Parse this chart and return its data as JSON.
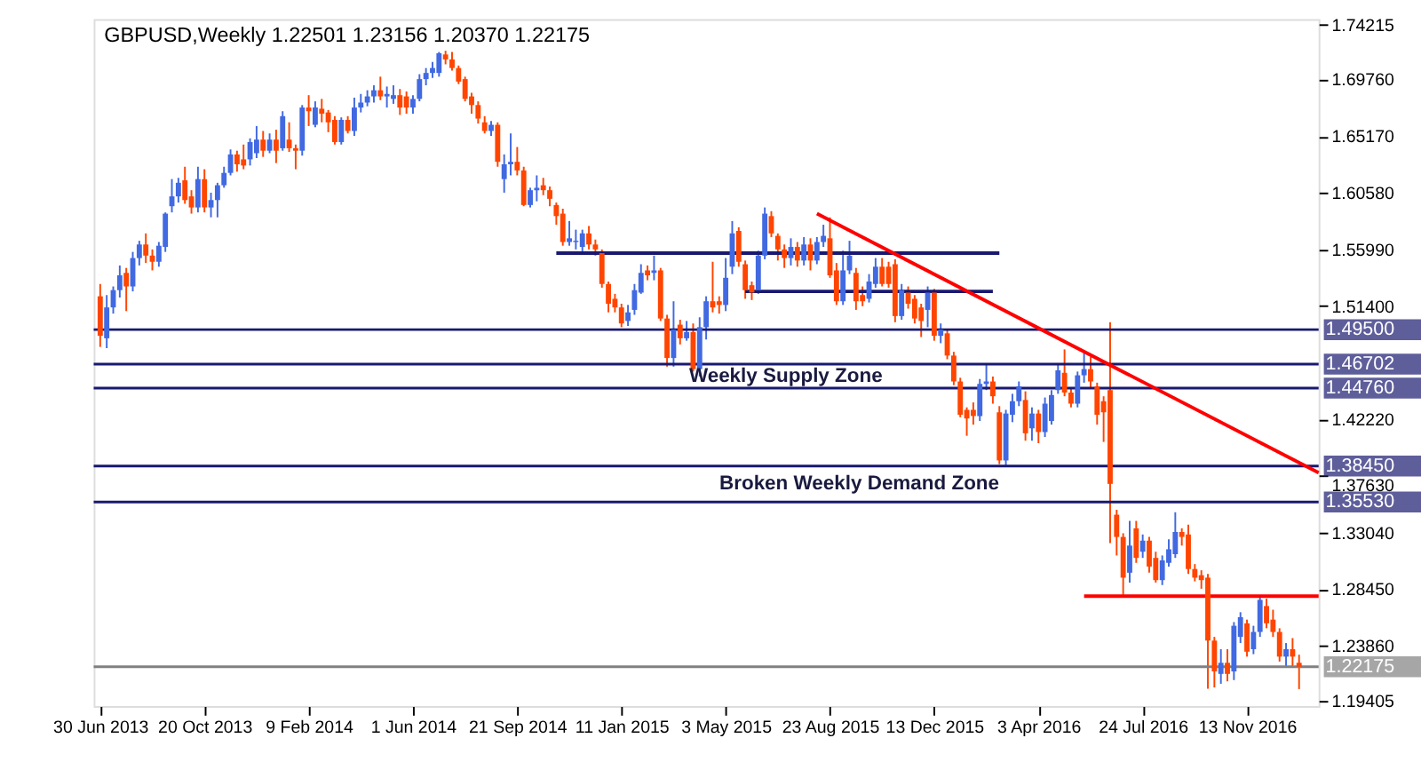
{
  "chart_data": {
    "type": "candlestick",
    "title": "GBPUSD,Weekly  1.22501 1.23156 1.20370 1.22175",
    "x": [
      "2013-06-30",
      "2013-07-07",
      "2013-07-14",
      "2013-07-21",
      "2013-07-28",
      "2013-08-04",
      "2013-08-11",
      "2013-08-18",
      "2013-08-25",
      "2013-09-01",
      "2013-09-08",
      "2013-09-15",
      "2013-09-22",
      "2013-09-29",
      "2013-10-06",
      "2013-10-13",
      "2013-10-20",
      "2013-10-27",
      "2013-11-03",
      "2013-11-10",
      "2013-11-17",
      "2013-11-24",
      "2013-12-01",
      "2013-12-08",
      "2013-12-15",
      "2013-12-22",
      "2013-12-29",
      "2014-01-05",
      "2014-01-12",
      "2014-01-19",
      "2014-01-26",
      "2014-02-02",
      "2014-02-09",
      "2014-02-16",
      "2014-02-23",
      "2014-03-02",
      "2014-03-09",
      "2014-03-16",
      "2014-03-23",
      "2014-03-30",
      "2014-04-06",
      "2014-04-13",
      "2014-04-20",
      "2014-04-27",
      "2014-05-04",
      "2014-05-11",
      "2014-05-18",
      "2014-05-25",
      "2014-06-01",
      "2014-06-08",
      "2014-06-15",
      "2014-06-22",
      "2014-06-29",
      "2014-07-06",
      "2014-07-13",
      "2014-07-20",
      "2014-07-27",
      "2014-08-03",
      "2014-08-10",
      "2014-08-17",
      "2014-08-24",
      "2014-08-31",
      "2014-09-07",
      "2014-09-14",
      "2014-09-21",
      "2014-09-28",
      "2014-10-05",
      "2014-10-12",
      "2014-10-19",
      "2014-10-26",
      "2014-11-02",
      "2014-11-09",
      "2014-11-16",
      "2014-11-23",
      "2014-11-30",
      "2014-12-07",
      "2014-12-14",
      "2014-12-21",
      "2014-12-28",
      "2015-01-04",
      "2015-01-11",
      "2015-01-18",
      "2015-01-25",
      "2015-02-01",
      "2015-02-08",
      "2015-02-15",
      "2015-02-22",
      "2015-03-01",
      "2015-03-08",
      "2015-03-15",
      "2015-03-22",
      "2015-03-29",
      "2015-04-05",
      "2015-04-12",
      "2015-04-19",
      "2015-04-26",
      "2015-05-03",
      "2015-05-10",
      "2015-05-17",
      "2015-05-24",
      "2015-05-31",
      "2015-06-07",
      "2015-06-14",
      "2015-06-21",
      "2015-06-28",
      "2015-07-05",
      "2015-07-12",
      "2015-07-19",
      "2015-07-26",
      "2015-08-02",
      "2015-08-09",
      "2015-08-16",
      "2015-08-23",
      "2015-08-30",
      "2015-09-06",
      "2015-09-13",
      "2015-09-20",
      "2015-09-27",
      "2015-10-04",
      "2015-10-11",
      "2015-10-18",
      "2015-10-25",
      "2015-11-01",
      "2015-11-08",
      "2015-11-15",
      "2015-11-22",
      "2015-11-29",
      "2015-12-06",
      "2015-12-13",
      "2015-12-20",
      "2015-12-27",
      "2016-01-03",
      "2016-01-10",
      "2016-01-17",
      "2016-01-24",
      "2016-01-31",
      "2016-02-07",
      "2016-02-14",
      "2016-02-21",
      "2016-02-28",
      "2016-03-06",
      "2016-03-13",
      "2016-03-20",
      "2016-03-27",
      "2016-04-03",
      "2016-04-10",
      "2016-04-17",
      "2016-04-24",
      "2016-05-01",
      "2016-05-08",
      "2016-05-15",
      "2016-05-22",
      "2016-05-29",
      "2016-06-05",
      "2016-06-12",
      "2016-06-19",
      "2016-06-26",
      "2016-07-03",
      "2016-07-10",
      "2016-07-17",
      "2016-07-24",
      "2016-07-31",
      "2016-08-07",
      "2016-08-14",
      "2016-08-21",
      "2016-08-28",
      "2016-09-04",
      "2016-09-11",
      "2016-09-18",
      "2016-09-25",
      "2016-10-02",
      "2016-10-09",
      "2016-10-16",
      "2016-10-23",
      "2016-10-30",
      "2016-11-06",
      "2016-11-13",
      "2016-11-20",
      "2016-11-27",
      "2016-12-04",
      "2016-12-11",
      "2016-12-18",
      "2016-12-25",
      "2017-01-01",
      "2017-01-08"
    ],
    "ohlc": [
      [
        1.522,
        1.532,
        1.481,
        1.49
      ],
      [
        1.488,
        1.523,
        1.48,
        1.513
      ],
      [
        1.513,
        1.53,
        1.508,
        1.527
      ],
      [
        1.527,
        1.547,
        1.521,
        1.539
      ],
      [
        1.541,
        1.545,
        1.51,
        1.53
      ],
      [
        1.53,
        1.558,
        1.526,
        1.553
      ],
      [
        1.553,
        1.567,
        1.547,
        1.564
      ],
      [
        1.564,
        1.573,
        1.549,
        1.555
      ],
      [
        1.555,
        1.56,
        1.543,
        1.55
      ],
      [
        1.55,
        1.566,
        1.546,
        1.563
      ],
      [
        1.562,
        1.59,
        1.558,
        1.589
      ],
      [
        1.595,
        1.617,
        1.59,
        1.603
      ],
      [
        1.603,
        1.618,
        1.598,
        1.614
      ],
      [
        1.616,
        1.627,
        1.597,
        1.6
      ],
      [
        1.603,
        1.608,
        1.589,
        1.594
      ],
      [
        1.594,
        1.627,
        1.59,
        1.617
      ],
      [
        1.617,
        1.625,
        1.59,
        1.594
      ],
      [
        1.594,
        1.606,
        1.586,
        1.6
      ],
      [
        1.6,
        1.614,
        1.586,
        1.612
      ],
      [
        1.612,
        1.627,
        1.61,
        1.622
      ],
      [
        1.622,
        1.641,
        1.62,
        1.637
      ],
      [
        1.637,
        1.64,
        1.623,
        1.629
      ],
      [
        1.633,
        1.645,
        1.625,
        1.628
      ],
      [
        1.633,
        1.65,
        1.628,
        1.647
      ],
      [
        1.638,
        1.66,
        1.634,
        1.649
      ],
      [
        1.649,
        1.656,
        1.635,
        1.64
      ],
      [
        1.64,
        1.654,
        1.638,
        1.649
      ],
      [
        1.649,
        1.657,
        1.63,
        1.64
      ],
      [
        1.642,
        1.672,
        1.64,
        1.668
      ],
      [
        1.649,
        1.663,
        1.639,
        1.642
      ],
      [
        1.642,
        1.645,
        1.625,
        1.64
      ],
      [
        1.64,
        1.677,
        1.636,
        1.675
      ],
      [
        1.675,
        1.685,
        1.66,
        1.672
      ],
      [
        1.661,
        1.68,
        1.659,
        1.675
      ],
      [
        1.674,
        1.682,
        1.663,
        1.67
      ],
      [
        1.671,
        1.673,
        1.655,
        1.663
      ],
      [
        1.665,
        1.668,
        1.645,
        1.647
      ],
      [
        1.647,
        1.667,
        1.645,
        1.665
      ],
      [
        1.665,
        1.668,
        1.654,
        1.656
      ],
      [
        1.656,
        1.683,
        1.652,
        1.675
      ],
      [
        1.675,
        1.686,
        1.671,
        1.679
      ],
      [
        1.679,
        1.689,
        1.676,
        1.684
      ],
      [
        1.684,
        1.693,
        1.679,
        1.689
      ],
      [
        1.689,
        1.7,
        1.681,
        1.684
      ],
      [
        1.684,
        1.692,
        1.675,
        1.686
      ],
      [
        1.682,
        1.693,
        1.678,
        1.685
      ],
      [
        1.685,
        1.69,
        1.669,
        1.675
      ],
      [
        1.684,
        1.688,
        1.67,
        1.675
      ],
      [
        1.675,
        1.685,
        1.67,
        1.682
      ],
      [
        1.682,
        1.702,
        1.68,
        1.698
      ],
      [
        1.698,
        1.707,
        1.693,
        1.703
      ],
      [
        1.703,
        1.712,
        1.699,
        1.707
      ],
      [
        1.703,
        1.72,
        1.7,
        1.719
      ],
      [
        1.718,
        1.721,
        1.71,
        1.714
      ],
      [
        1.714,
        1.72,
        1.705,
        1.707
      ],
      [
        1.707,
        1.709,
        1.694,
        1.696
      ],
      [
        1.698,
        1.7,
        1.68,
        1.682
      ],
      [
        1.684,
        1.687,
        1.67,
        1.677
      ],
      [
        1.677,
        1.68,
        1.662,
        1.666
      ],
      [
        1.663,
        1.668,
        1.654,
        1.656
      ],
      [
        1.656,
        1.664,
        1.652,
        1.661
      ],
      [
        1.661,
        1.663,
        1.627,
        1.631
      ],
      [
        1.617,
        1.637,
        1.606,
        1.629
      ],
      [
        1.629,
        1.654,
        1.62,
        1.631
      ],
      [
        1.631,
        1.643,
        1.62,
        1.624
      ],
      [
        1.624,
        1.627,
        1.595,
        1.596
      ],
      [
        1.596,
        1.61,
        1.594,
        1.608
      ],
      [
        1.608,
        1.62,
        1.599,
        1.61
      ],
      [
        1.612,
        1.618,
        1.604,
        1.608
      ],
      [
        1.608,
        1.611,
        1.595,
        1.601
      ],
      [
        1.596,
        1.598,
        1.58,
        1.587
      ],
      [
        1.589,
        1.593,
        1.563,
        1.566
      ],
      [
        1.566,
        1.583,
        1.563,
        1.569
      ],
      [
        1.566,
        1.576,
        1.56,
        1.567
      ],
      [
        1.562,
        1.576,
        1.558,
        1.573
      ],
      [
        1.573,
        1.579,
        1.56,
        1.564
      ],
      [
        1.564,
        1.568,
        1.555,
        1.56
      ],
      [
        1.557,
        1.56,
        1.529,
        1.532
      ],
      [
        1.532,
        1.534,
        1.509,
        1.516
      ],
      [
        1.52,
        1.524,
        1.509,
        1.513
      ],
      [
        1.513,
        1.516,
        1.497,
        1.5
      ],
      [
        1.502,
        1.515,
        1.498,
        1.509
      ],
      [
        1.511,
        1.532,
        1.507,
        1.527
      ],
      [
        1.525,
        1.548,
        1.524,
        1.541
      ],
      [
        1.543,
        1.547,
        1.535,
        1.539
      ],
      [
        1.541,
        1.555,
        1.535,
        1.543
      ],
      [
        1.543,
        1.545,
        1.502,
        1.504
      ],
      [
        1.504,
        1.507,
        1.465,
        1.472
      ],
      [
        1.472,
        1.518,
        1.465,
        1.495
      ],
      [
        1.499,
        1.503,
        1.483,
        1.488
      ],
      [
        1.488,
        1.502,
        1.486,
        1.493
      ],
      [
        1.493,
        1.5,
        1.461,
        1.463
      ],
      [
        1.463,
        1.505,
        1.457,
        1.497
      ],
      [
        1.497,
        1.522,
        1.487,
        1.518
      ],
      [
        1.518,
        1.55,
        1.509,
        1.513
      ],
      [
        1.518,
        1.522,
        1.508,
        1.515
      ],
      [
        1.515,
        1.553,
        1.51,
        1.537
      ],
      [
        1.546,
        1.583,
        1.54,
        1.573
      ],
      [
        1.575,
        1.578,
        1.546,
        1.55
      ],
      [
        1.548,
        1.551,
        1.52,
        1.527
      ],
      [
        1.531,
        1.534,
        1.519,
        1.525
      ],
      [
        1.527,
        1.559,
        1.524,
        1.555
      ],
      [
        1.555,
        1.594,
        1.552,
        1.589
      ],
      [
        1.587,
        1.591,
        1.57,
        1.573
      ],
      [
        1.571,
        1.573,
        1.551,
        1.56
      ],
      [
        1.56,
        1.564,
        1.545,
        1.553
      ],
      [
        1.553,
        1.569,
        1.547,
        1.562
      ],
      [
        1.562,
        1.566,
        1.546,
        1.551
      ],
      [
        1.551,
        1.57,
        1.547,
        1.564
      ],
      [
        1.564,
        1.569,
        1.543,
        1.551
      ],
      [
        1.551,
        1.57,
        1.548,
        1.566
      ],
      [
        1.566,
        1.58,
        1.562,
        1.571
      ],
      [
        1.569,
        1.586,
        1.537,
        1.539
      ],
      [
        1.543,
        1.549,
        1.515,
        1.518
      ],
      [
        1.518,
        1.559,
        1.515,
        1.543
      ],
      [
        1.543,
        1.567,
        1.54,
        1.555
      ],
      [
        1.541,
        1.545,
        1.511,
        1.518
      ],
      [
        1.523,
        1.53,
        1.514,
        1.518
      ],
      [
        1.52,
        1.54,
        1.517,
        1.534
      ],
      [
        1.532,
        1.553,
        1.529,
        1.546
      ],
      [
        1.546,
        1.553,
        1.53,
        1.532
      ],
      [
        1.546,
        1.55,
        1.529,
        1.532
      ],
      [
        1.548,
        1.552,
        1.501,
        1.506
      ],
      [
        1.506,
        1.532,
        1.503,
        1.527
      ],
      [
        1.525,
        1.53,
        1.512,
        1.516
      ],
      [
        1.52,
        1.523,
        1.5,
        1.504
      ],
      [
        1.513,
        1.516,
        1.489,
        1.502
      ],
      [
        1.511,
        1.53,
        1.497,
        1.525
      ],
      [
        1.525,
        1.528,
        1.486,
        1.49
      ],
      [
        1.49,
        1.5,
        1.484,
        1.495
      ],
      [
        1.492,
        1.495,
        1.471,
        1.474
      ],
      [
        1.474,
        1.477,
        1.45,
        1.453
      ],
      [
        1.453,
        1.456,
        1.424,
        1.426
      ],
      [
        1.43,
        1.432,
        1.409,
        1.423
      ],
      [
        1.43,
        1.436,
        1.418,
        1.425
      ],
      [
        1.425,
        1.455,
        1.421,
        1.451
      ],
      [
        1.451,
        1.467,
        1.446,
        1.453
      ],
      [
        1.453,
        1.457,
        1.435,
        1.441
      ],
      [
        1.428,
        1.433,
        1.386,
        1.389
      ],
      [
        1.389,
        1.43,
        1.385,
        1.427
      ],
      [
        1.426,
        1.443,
        1.42,
        1.437
      ],
      [
        1.437,
        1.453,
        1.433,
        1.449
      ],
      [
        1.438,
        1.445,
        1.405,
        1.411
      ],
      [
        1.415,
        1.432,
        1.405,
        1.427
      ],
      [
        1.427,
        1.43,
        1.403,
        1.412
      ],
      [
        1.412,
        1.44,
        1.408,
        1.435
      ],
      [
        1.421,
        1.446,
        1.418,
        1.442
      ],
      [
        1.446,
        1.467,
        1.443,
        1.462
      ],
      [
        1.46,
        1.479,
        1.441,
        1.444
      ],
      [
        1.444,
        1.448,
        1.432,
        1.435
      ],
      [
        1.435,
        1.461,
        1.432,
        1.458
      ],
      [
        1.458,
        1.476,
        1.452,
        1.463
      ],
      [
        1.463,
        1.473,
        1.448,
        1.453
      ],
      [
        1.449,
        1.452,
        1.418,
        1.426
      ],
      [
        1.437,
        1.441,
        1.404,
        1.428
      ],
      [
        1.446,
        1.501,
        1.322,
        1.37
      ],
      [
        1.345,
        1.349,
        1.312,
        1.327
      ],
      [
        1.327,
        1.33,
        1.28,
        1.294
      ],
      [
        1.298,
        1.34,
        1.29,
        1.32
      ],
      [
        1.334,
        1.34,
        1.306,
        1.31
      ],
      [
        1.315,
        1.329,
        1.31,
        1.324
      ],
      [
        1.324,
        1.327,
        1.298,
        1.303
      ],
      [
        1.31,
        1.315,
        1.29,
        1.292
      ],
      [
        1.292,
        1.312,
        1.288,
        1.308
      ],
      [
        1.306,
        1.325,
        1.303,
        1.317
      ],
      [
        1.313,
        1.347,
        1.31,
        1.331
      ],
      [
        1.331,
        1.334,
        1.32,
        1.327
      ],
      [
        1.329,
        1.337,
        1.297,
        1.301
      ],
      [
        1.301,
        1.305,
        1.291,
        1.294
      ],
      [
        1.296,
        1.3,
        1.285,
        1.292
      ],
      [
        1.294,
        1.297,
        1.204,
        1.243
      ],
      [
        1.243,
        1.246,
        1.205,
        1.218
      ],
      [
        1.216,
        1.236,
        1.208,
        1.225
      ],
      [
        1.225,
        1.236,
        1.21,
        1.216
      ],
      [
        1.218,
        1.258,
        1.211,
        1.255
      ],
      [
        1.246,
        1.266,
        1.241,
        1.262
      ],
      [
        1.257,
        1.26,
        1.23,
        1.234
      ],
      [
        1.236,
        1.255,
        1.232,
        1.25
      ],
      [
        1.25,
        1.278,
        1.246,
        1.276
      ],
      [
        1.271,
        1.277,
        1.253,
        1.257
      ],
      [
        1.26,
        1.268,
        1.246,
        1.25
      ],
      [
        1.25,
        1.253,
        1.226,
        1.23
      ],
      [
        1.23,
        1.241,
        1.221,
        1.236
      ],
      [
        1.236,
        1.245,
        1.221,
        1.23
      ],
      [
        1.22501,
        1.23156,
        1.2037,
        1.22175
      ]
    ],
    "colors": [
      "#ff4500",
      "#4169e1",
      "#4169e1",
      "#4169e1",
      "#ff4500",
      "#4169e1",
      "#4169e1",
      "#ff4500",
      "#ff4500",
      "#4169e1",
      "#4169e1",
      "#4169e1",
      "#4169e1",
      "#ff4500",
      "#ff4500",
      "#4169e1",
      "#ff4500",
      "#4169e1",
      "#4169e1",
      "#4169e1",
      "#4169e1",
      "#ff4500",
      "#ff4500",
      "#4169e1",
      "#4169e1",
      "#ff4500",
      "#4169e1",
      "#ff4500",
      "#4169e1",
      "#ff4500",
      "#ff4500",
      "#4169e1",
      "#ff4500",
      "#4169e1",
      "#ff4500",
      "#ff4500",
      "#ff4500",
      "#4169e1",
      "#ff4500",
      "#4169e1",
      "#4169e1",
      "#4169e1",
      "#4169e1",
      "#ff4500",
      "#4169e1",
      "#4169e1",
      "#ff4500",
      "#ff4500",
      "#4169e1",
      "#4169e1",
      "#4169e1",
      "#4169e1",
      "#4169e1",
      "#ff4500",
      "#ff4500",
      "#ff4500",
      "#ff4500",
      "#ff4500",
      "#ff4500",
      "#ff4500",
      "#4169e1",
      "#ff4500",
      "#4169e1",
      "#4169e1",
      "#ff4500",
      "#ff4500",
      "#4169e1",
      "#4169e1",
      "#ff4500",
      "#ff4500",
      "#ff4500",
      "#ff4500",
      "#4169e1",
      "#4169e1",
      "#4169e1",
      "#ff4500",
      "#ff4500",
      "#ff4500",
      "#ff4500",
      "#ff4500",
      "#ff4500",
      "#4169e1",
      "#4169e1",
      "#4169e1",
      "#ff4500",
      "#4169e1",
      "#ff4500",
      "#ff4500",
      "#4169e1",
      "#ff4500",
      "#4169e1",
      "#ff4500",
      "#4169e1",
      "#4169e1",
      "#ff4500",
      "#ff4500",
      "#4169e1",
      "#4169e1",
      "#ff4500",
      "#ff4500",
      "#ff4500",
      "#4169e1",
      "#4169e1",
      "#ff4500",
      "#ff4500",
      "#ff4500",
      "#4169e1",
      "#ff4500",
      "#4169e1",
      "#ff4500",
      "#4169e1",
      "#4169e1",
      "#ff4500",
      "#ff4500",
      "#4169e1",
      "#4169e1",
      "#ff4500",
      "#ff4500",
      "#4169e1",
      "#4169e1",
      "#ff4500",
      "#ff4500",
      "#ff4500",
      "#4169e1",
      "#ff4500",
      "#ff4500",
      "#ff4500",
      "#4169e1",
      "#ff4500",
      "#4169e1",
      "#ff4500",
      "#ff4500",
      "#ff4500",
      "#ff4500",
      "#ff4500",
      "#4169e1",
      "#4169e1",
      "#ff4500",
      "#ff4500",
      "#4169e1",
      "#4169e1",
      "#4169e1",
      "#ff4500",
      "#4169e1",
      "#ff4500",
      "#4169e1",
      "#4169e1",
      "#4169e1",
      "#ff4500",
      "#ff4500",
      "#4169e1",
      "#4169e1",
      "#ff4500",
      "#ff4500",
      "#ff4500",
      "#ff4500",
      "#ff4500",
      "#ff4500",
      "#4169e1",
      "#ff4500",
      "#4169e1",
      "#ff4500",
      "#ff4500",
      "#4169e1",
      "#4169e1",
      "#4169e1",
      "#ff4500",
      "#ff4500",
      "#ff4500",
      "#ff4500",
      "#ff4500",
      "#ff4500",
      "#4169e1",
      "#ff4500",
      "#4169e1",
      "#4169e1",
      "#ff4500",
      "#4169e1",
      "#4169e1",
      "#ff4500",
      "#ff4500",
      "#ff4500",
      "#4169e1",
      "#ff4500",
      "#ff4500"
    ],
    "series": [
      {
        "type": "line",
        "color": "#191970",
        "x": [
          "2014-11-02",
          "2016-02-21"
        ],
        "values": [
          1.557,
          1.557
        ]
      },
      {
        "type": "line",
        "color": "#191970",
        "x": [
          "2015-05-24",
          "2016-02-14"
        ],
        "values": [
          1.526,
          1.526
        ]
      },
      {
        "type": "line",
        "color": "#ff0000",
        "x": [
          "2016-05-22",
          "2017-01-29"
        ],
        "values": [
          1.279,
          1.279
        ]
      },
      {
        "type": "line",
        "color": "#ff0000",
        "x": [
          "2015-08-09",
          "2017-01-29"
        ],
        "values": [
          1.589,
          1.379
        ]
      }
    ],
    "ref_lines": [
      {
        "axis": "y",
        "value": 1.495,
        "label": "1.49500",
        "color": "#191970"
      },
      {
        "axis": "y",
        "value": 1.46702,
        "label": "1.46702",
        "color": "#191970"
      },
      {
        "axis": "y",
        "value": 1.4476,
        "label": "1.44760",
        "color": "#191970"
      },
      {
        "axis": "y",
        "value": 1.3845,
        "label": "1.38450",
        "color": "#191970"
      },
      {
        "axis": "y",
        "value": 1.3553,
        "label": "1.35530",
        "color": "#191970"
      },
      {
        "axis": "y",
        "value": 1.22175,
        "label": "1.22175",
        "color": "#808080"
      }
    ],
    "annotations": [
      "Weekly Supply Zone",
      "Broken Weekly Demand Zone"
    ],
    "xlim": [
      "2013-06-23",
      "2017-01-29"
    ],
    "xticks": [
      {
        "value": "2013-06-30",
        "label": "30 Jun 2013"
      },
      {
        "value": "2013-10-20",
        "label": "20 Oct 2013"
      },
      {
        "value": "2014-02-09",
        "label": "9 Feb 2014"
      },
      {
        "value": "2014-06-01",
        "label": "1 Jun 2014"
      },
      {
        "value": "2014-09-21",
        "label": "21 Sep 2014"
      },
      {
        "value": "2015-01-11",
        "label": "11 Jan 2015"
      },
      {
        "value": "2015-05-03",
        "label": "3 May 2015"
      },
      {
        "value": "2015-08-23",
        "label": "23 Aug 2015"
      },
      {
        "value": "2015-12-13",
        "label": "13 Dec 2015"
      },
      {
        "value": "2016-04-03",
        "label": "3 Apr 2016"
      },
      {
        "value": "2016-07-24",
        "label": "24 Jul 2016"
      },
      {
        "value": "2016-11-13",
        "label": "13 Nov 2016"
      }
    ],
    "ylim": [
      1.1899,
      1.7467
    ],
    "yticks": [
      {
        "value": 1.74215,
        "label": "1.74215"
      },
      {
        "value": 1.6976,
        "label": "1.69760"
      },
      {
        "value": 1.6517,
        "label": "1.65170"
      },
      {
        "value": 1.6058,
        "label": "1.60580"
      },
      {
        "value": 1.5599,
        "label": "1.55990"
      },
      {
        "value": 1.514,
        "label": "1.51400"
      },
      {
        "value": 1.4222,
        "label": "1.42220"
      },
      {
        "value": 1.3763,
        "label": "1.37630"
      },
      {
        "value": 1.3304,
        "label": "1.33040"
      },
      {
        "value": 1.2845,
        "label": "1.28450"
      },
      {
        "value": 1.2386,
        "label": "1.23860"
      },
      {
        "value": 1.19405,
        "label": "1.19405"
      }
    ],
    "grid": false
  }
}
